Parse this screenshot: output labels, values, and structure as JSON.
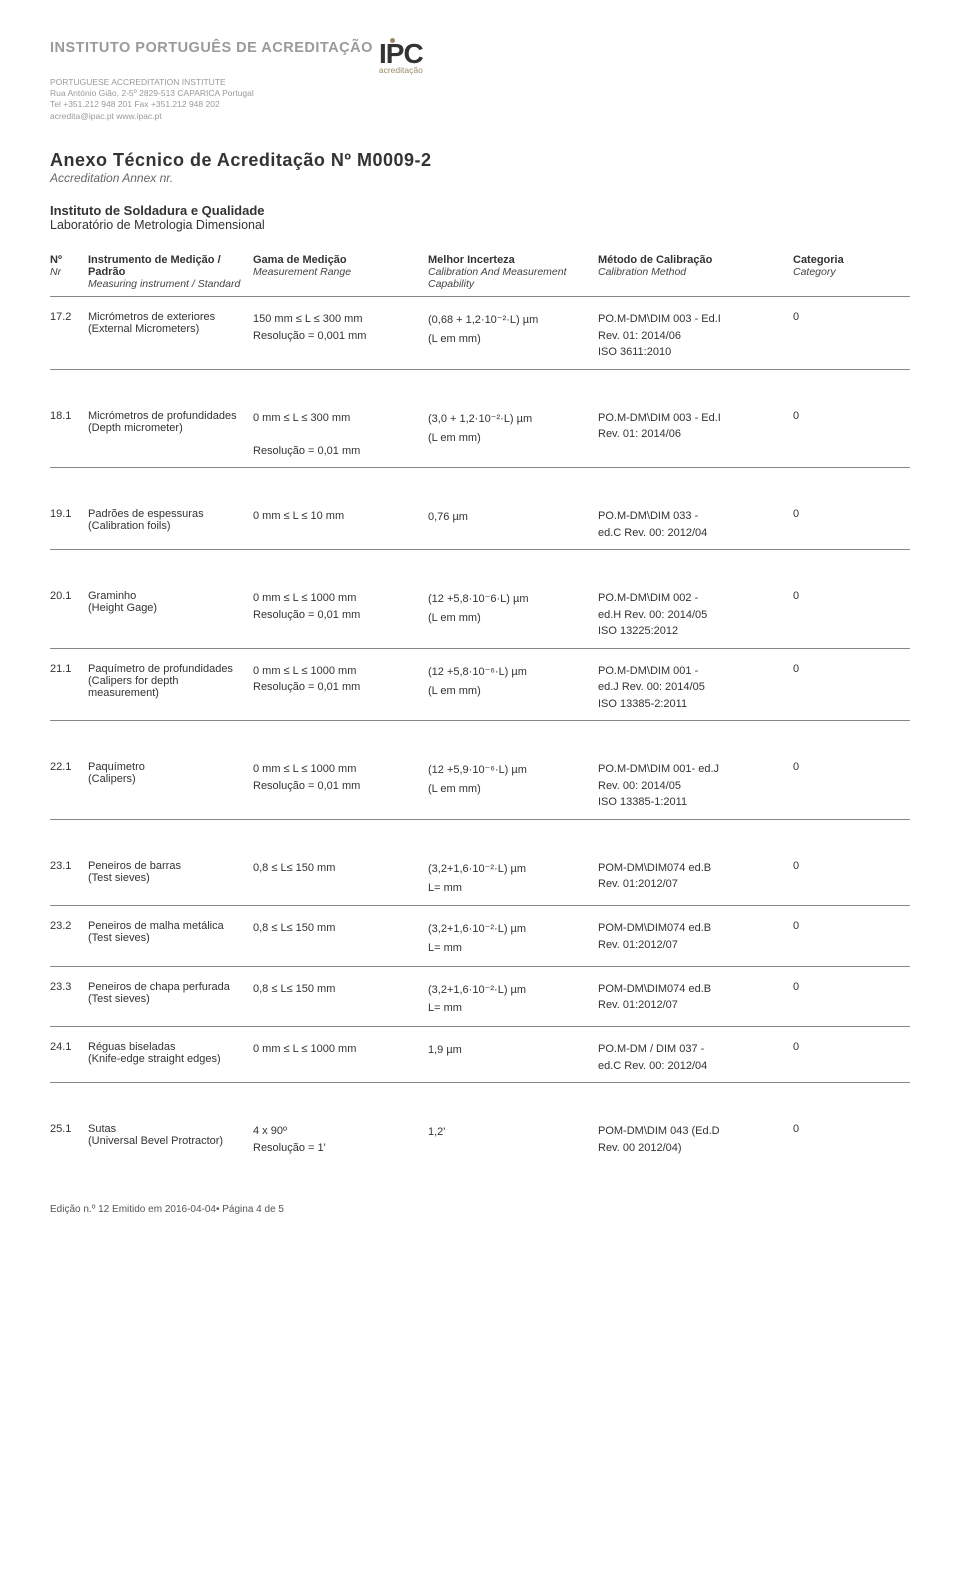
{
  "header": {
    "institute": "INSTITUTO PORTUGUÊS DE ACREDITAÇÃO",
    "logo_main": "IPC",
    "logo_sub": "acreditação",
    "subtitle": "PORTUGUESE ACCREDITATION INSTITUTE",
    "addr": "Rua António Gião, 2-5º 2829-513 CAPARICA Portugal",
    "tel": "Tel +351.212 948 201  Fax +351.212 948 202",
    "web": "acredita@ipac.pt  www.ipac.pt"
  },
  "doc": {
    "title": "Anexo Técnico de Acreditação Nº M0009-2",
    "title_sub": "Accreditation Annex nr.",
    "org": "Instituto de Soldadura e Qualidade",
    "org_sub": "Laboratório de Metrologia Dimensional"
  },
  "cols": {
    "nr": "Nº",
    "nr_it": "Nr",
    "inst": "Instrumento de Medição / Padrão",
    "inst_it": "Measuring instrument / Standard",
    "range": "Gama de Medição",
    "range_it": "Measurement Range",
    "unc": "Melhor Incerteza",
    "unc_it": "Calibration And Measurement Capability",
    "meth": "Método de Calibração",
    "meth_it": "Calibration Method",
    "cat": "Categoria",
    "cat_it": "Category"
  },
  "rows": [
    {
      "nr": "17.2",
      "inst": "Micrómetros de exteriores",
      "inst_sub": "(External Micrometers)",
      "range": [
        "150 mm ≤ L ≤ 300 mm",
        "Resolução = 0,001 mm"
      ],
      "unc": [
        "(0,68 + 1,2·10⁻²·L) µm",
        "(L em mm)"
      ],
      "meth": [
        "PO.M-DM\\DIM 003 - Ed.I",
        "Rev. 01: 2014/06",
        "ISO 3611:2010"
      ],
      "cat": "0",
      "gap": true
    },
    {
      "nr": "18.1",
      "inst": "Micrómetros de profundidades",
      "inst_sub": "(Depth micrometer)",
      "range": [
        "0 mm ≤ L ≤ 300 mm",
        "",
        "Resolução = 0,01 mm"
      ],
      "unc": [
        "(3,0 + 1,2·10⁻²·L) µm",
        "(L em mm)"
      ],
      "meth": [
        "PO.M-DM\\DIM 003 - Ed.I",
        "Rev. 01: 2014/06"
      ],
      "cat": "0",
      "gap": true
    },
    {
      "nr": "19.1",
      "inst": "Padrões de espessuras",
      "inst_sub": "(Calibration foils)",
      "range": [
        "0 mm ≤ L ≤ 10 mm"
      ],
      "unc": [
        "0,76 µm"
      ],
      "meth": [
        "PO.M-DM\\DIM 033 -",
        "ed.C Rev. 00: 2012/04"
      ],
      "cat": "0",
      "gap": true
    },
    {
      "nr": "20.1",
      "inst": "Graminho",
      "inst_sub": "(Height Gage)",
      "range": [
        "0 mm ≤ L ≤ 1000 mm",
        "Resolução = 0,01 mm"
      ],
      "unc": [
        "(12 +5,8·10⁻6·L) µm",
        "(L em mm)"
      ],
      "meth": [
        "PO.M-DM\\DIM 002 -",
        "ed.H Rev. 00: 2014/05",
        "ISO 13225:2012"
      ],
      "cat": "0"
    },
    {
      "nr": "21.1",
      "inst": "Paquímetro de profundidades",
      "inst_sub": "(Calipers for depth measurement)",
      "range": [
        "0 mm ≤ L ≤ 1000 mm",
        "Resolução = 0,01 mm"
      ],
      "unc": [
        "(12 +5,8·10⁻⁶·L) µm",
        "(L em mm)"
      ],
      "meth": [
        "PO.M-DM\\DIM 001 -",
        "ed.J Rev. 00: 2014/05",
        "ISO 13385-2:2011"
      ],
      "cat": "0",
      "gap": true
    },
    {
      "nr": "22.1",
      "inst": "Paquímetro",
      "inst_sub": "(Calipers)",
      "range": [
        "0 mm ≤ L ≤ 1000 mm",
        "Resolução = 0,01 mm"
      ],
      "unc": [
        "(12 +5,9·10⁻⁶·L) µm",
        "(L em mm)"
      ],
      "meth": [
        "PO.M-DM\\DIM 001- ed.J",
        "Rev. 00: 2014/05",
        "ISO 13385-1:2011"
      ],
      "cat": "0",
      "gap": true
    },
    {
      "nr": "23.1",
      "inst": "Peneiros de barras",
      "inst_sub": "(Test sieves)",
      "range": [
        "0,8 ≤ L≤ 150 mm"
      ],
      "unc": [
        "(3,2+1,6·10⁻²·L) µm",
        "L= mm"
      ],
      "meth": [
        "POM-DM\\DIM074 ed.B",
        "Rev. 01:2012/07"
      ],
      "cat": "0"
    },
    {
      "nr": "23.2",
      "inst": "Peneiros de malha metálica",
      "inst_sub": "(Test sieves)",
      "range": [
        "0,8 ≤ L≤ 150 mm"
      ],
      "unc": [
        "(3,2+1,6·10⁻²·L) µm",
        "L= mm"
      ],
      "meth": [
        "POM-DM\\DIM074 ed.B",
        "Rev. 01:2012/07"
      ],
      "cat": "0"
    },
    {
      "nr": "23.3",
      "inst": "Peneiros de chapa perfurada",
      "inst_sub": "(Test sieves)",
      "range": [
        "0,8 ≤ L≤ 150 mm"
      ],
      "unc": [
        "(3,2+1,6·10⁻²·L) µm",
        "L= mm"
      ],
      "meth": [
        "POM-DM\\DIM074 ed.B",
        "Rev. 01:2012/07"
      ],
      "cat": "0"
    },
    {
      "nr": "24.1",
      "inst": "Réguas biseladas",
      "inst_sub": "(Knife-edge straight edges)",
      "range": [
        "0 mm ≤ L ≤ 1000 mm"
      ],
      "unc": [
        "1,9 µm"
      ],
      "meth": [
        "PO.M-DM / DIM 037 -",
        "ed.C Rev. 00: 2012/04"
      ],
      "cat": "0",
      "gap": true
    },
    {
      "nr": "25.1",
      "inst": "Sutas",
      "inst_sub": "(Universal Bevel Protractor)",
      "range": [
        "4 x 90º",
        "Resolução = 1'"
      ],
      "unc": [
        "1,2'"
      ],
      "meth": [
        "POM-DM\\DIM 043 (Ed.D",
        "Rev. 00 2012/04)"
      ],
      "cat": "0",
      "noborder": true
    }
  ],
  "footer": "Edição n.º 12  Emitido em 2016-04-04• Página 4 de 5"
}
